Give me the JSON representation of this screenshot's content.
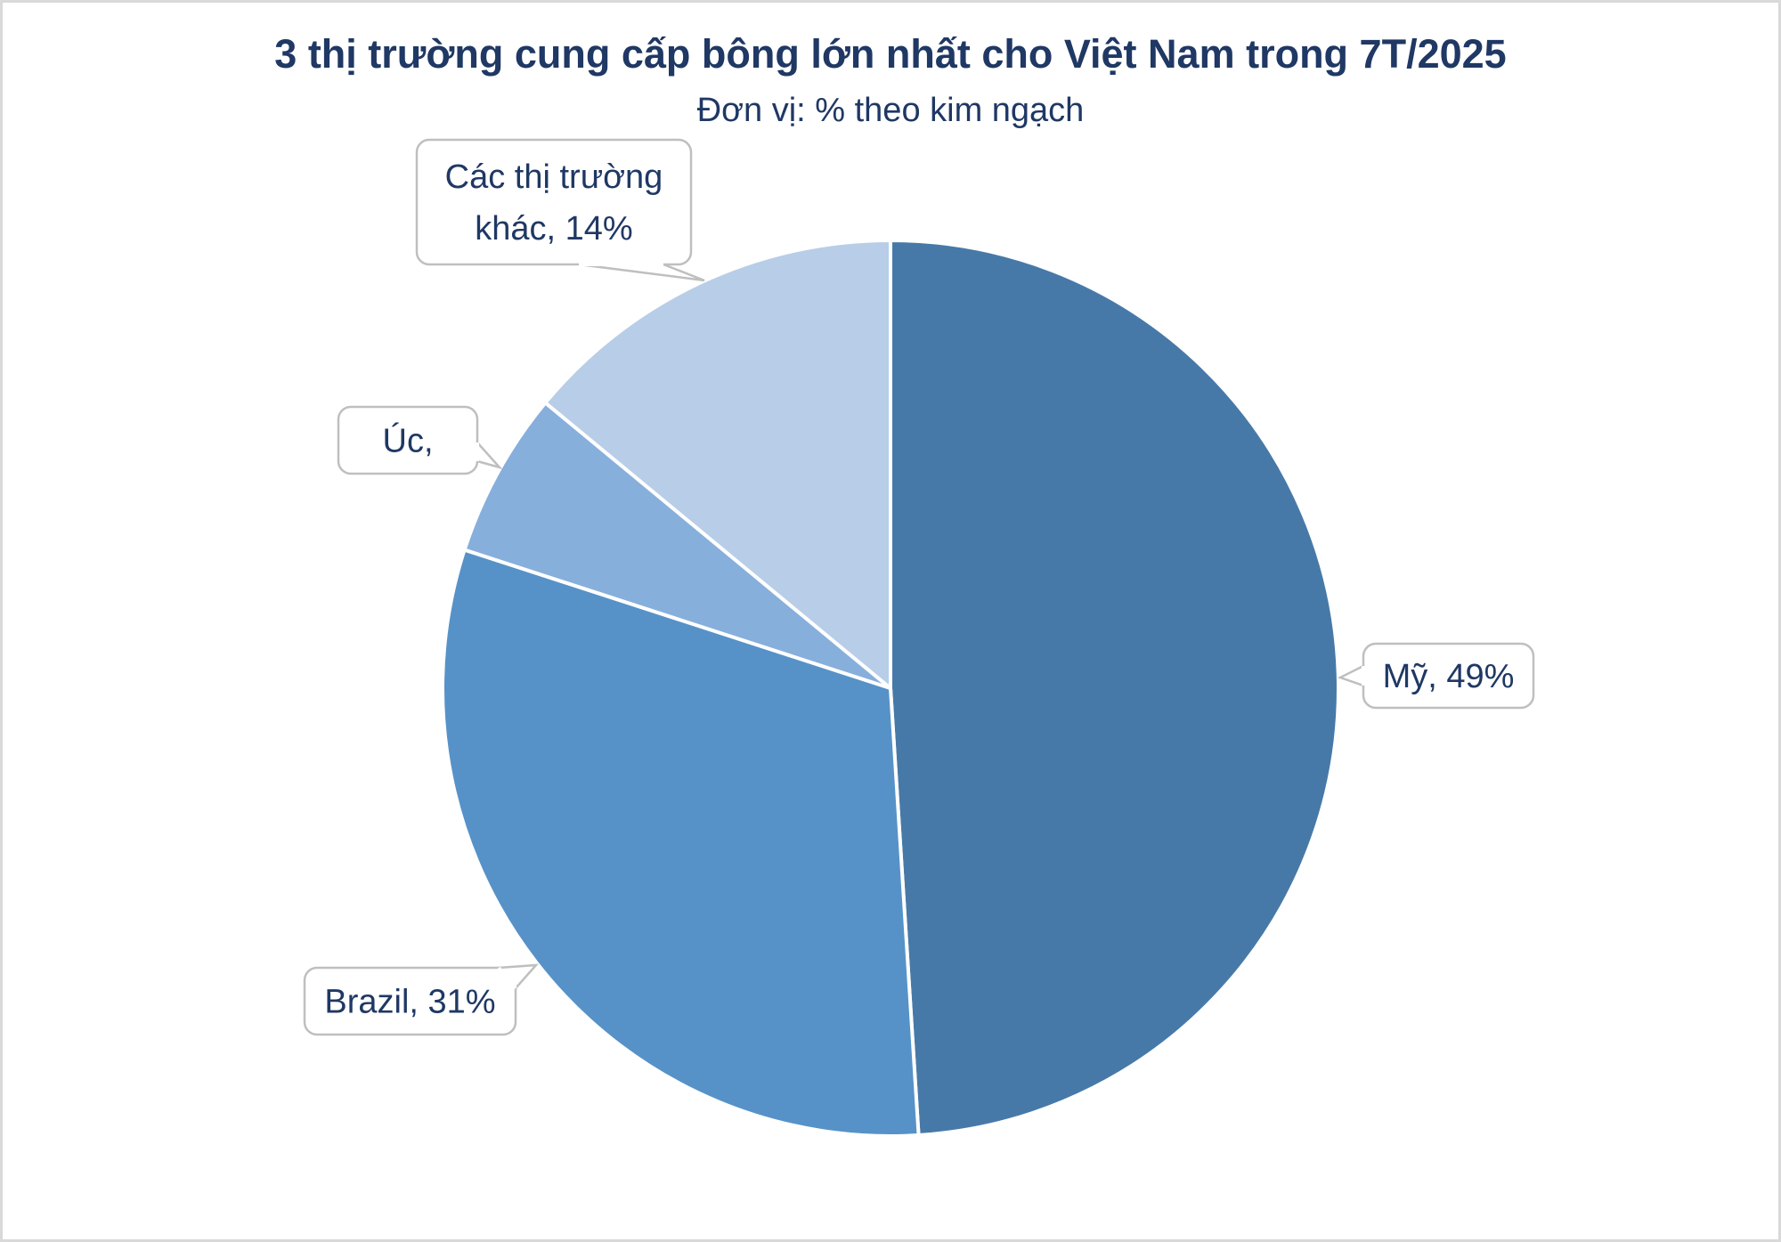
{
  "chart_data": {
    "type": "pie",
    "title": "3 thị trường cung cấp bông lớn nhất cho Việt Nam trong 7T/2025",
    "subtitle": "Đơn vị: % theo kim ngạch",
    "unit": "%",
    "start": "top, clockwise",
    "slices": [
      {
        "name": "Mỹ",
        "value": 49,
        "label": [
          "Mỹ, 49%"
        ],
        "color": "#4779A8"
      },
      {
        "name": "Brazil",
        "value": 31,
        "label": [
          "Brazil, 31%"
        ],
        "color": "#5692C8"
      },
      {
        "name": "Úc",
        "value": 6,
        "label": [
          "Úc,"
        ],
        "color": "#87AFDC"
      },
      {
        "name": "Các thị trường khác",
        "value": 14,
        "label": [
          "Các thị trường",
          "khác, 14%"
        ],
        "color": "#B8CDE7"
      }
    ],
    "legend": "none"
  }
}
